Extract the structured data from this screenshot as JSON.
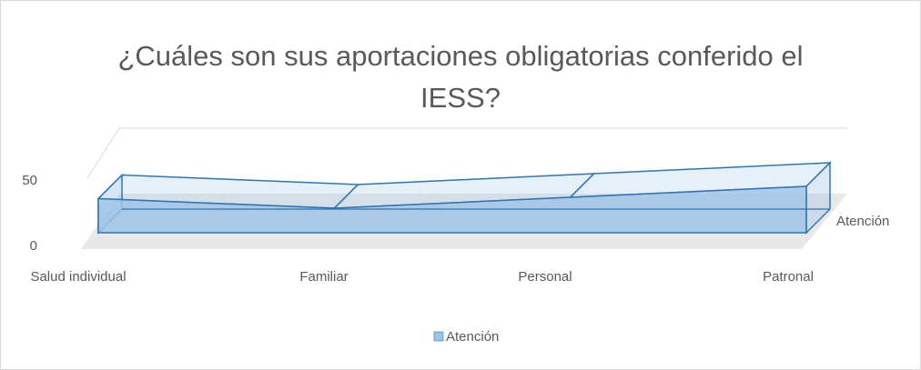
{
  "chart_data": {
    "type": "area3d",
    "title": "¿Cuáles son sus aportaciones obligatorias conferido el IESS?",
    "categories": [
      "Salud individual",
      "Familiar",
      "Personal",
      "Patronal"
    ],
    "series": [
      {
        "name": "Atención",
        "color": "#9dc3e6",
        "values": [
          25,
          18,
          26,
          34
        ]
      }
    ],
    "ylim": [
      0,
      50
    ],
    "yticks": [
      0,
      50
    ],
    "grid": true,
    "legend": "bottom"
  }
}
